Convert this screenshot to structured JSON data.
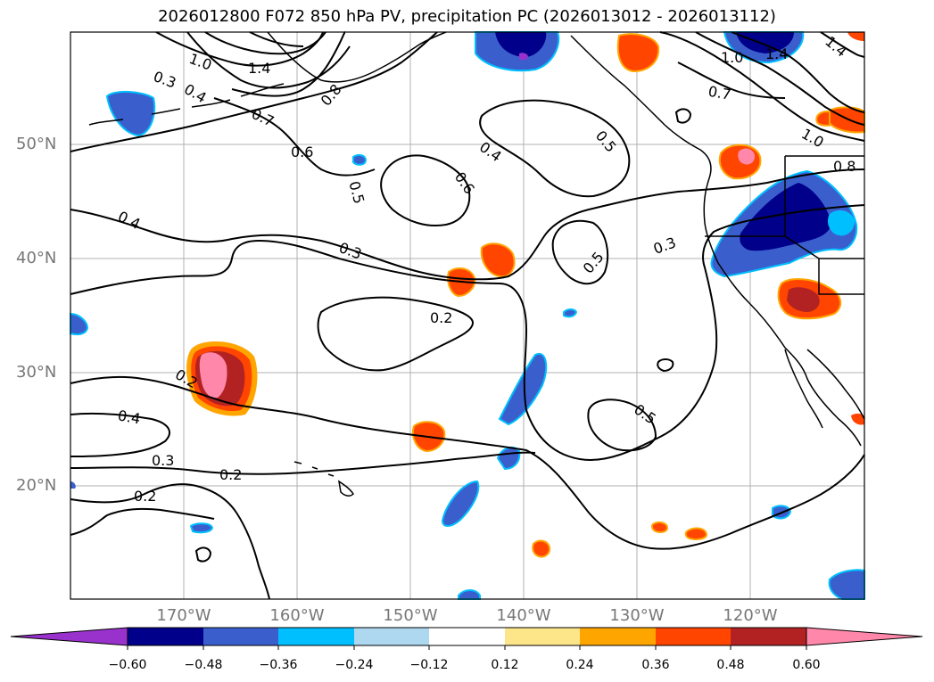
{
  "title": "2026012800 F072 850 hPa PV, precipitation PC (2026013012 - 2026013112)",
  "latitude_labels": [
    "50°N",
    "40°N",
    "30°N",
    "20°N"
  ],
  "longitude_labels": [
    "170°W",
    "160°W",
    "150°W",
    "140°W",
    "130°W",
    "120°W"
  ],
  "contour_labels": [
    "1.0",
    "1.4",
    "0.3",
    "0.4",
    "0.8",
    "0.7",
    "0.6",
    "0.5",
    "0.4",
    "0.6",
    "0.5",
    "1.4",
    "0.7",
    "1.0",
    "0.8",
    "0.4",
    "0.3",
    "0.3",
    "0.5",
    "0.2",
    "0.2",
    "0.4",
    "0.3",
    "0.2",
    "0.2",
    "0.5",
    "1.4",
    "1.0"
  ],
  "colorbar": {
    "tick_labels": [
      "−0.60",
      "−0.48",
      "−0.36",
      "−0.24",
      "−0.12",
      "0.12",
      "0.24",
      "0.36",
      "0.48",
      "0.60"
    ],
    "colors": [
      "#9932cc",
      "#00008b",
      "#3a5fcd",
      "#00bfff",
      "#add8f0",
      "#ffffff",
      "#fde68a",
      "#ffa500",
      "#ff4500",
      "#b22222",
      "#ff88aa"
    ]
  },
  "colors": {
    "neg_strong": "#00008b",
    "neg_mid": "#3a5fcd",
    "neg_light": "#00bfff",
    "pos_light": "#ffa500",
    "pos_mid": "#ff4500",
    "pos_strong": "#b22222",
    "pos_max": "#ff88aa",
    "grid": "#b0b0b0"
  }
}
